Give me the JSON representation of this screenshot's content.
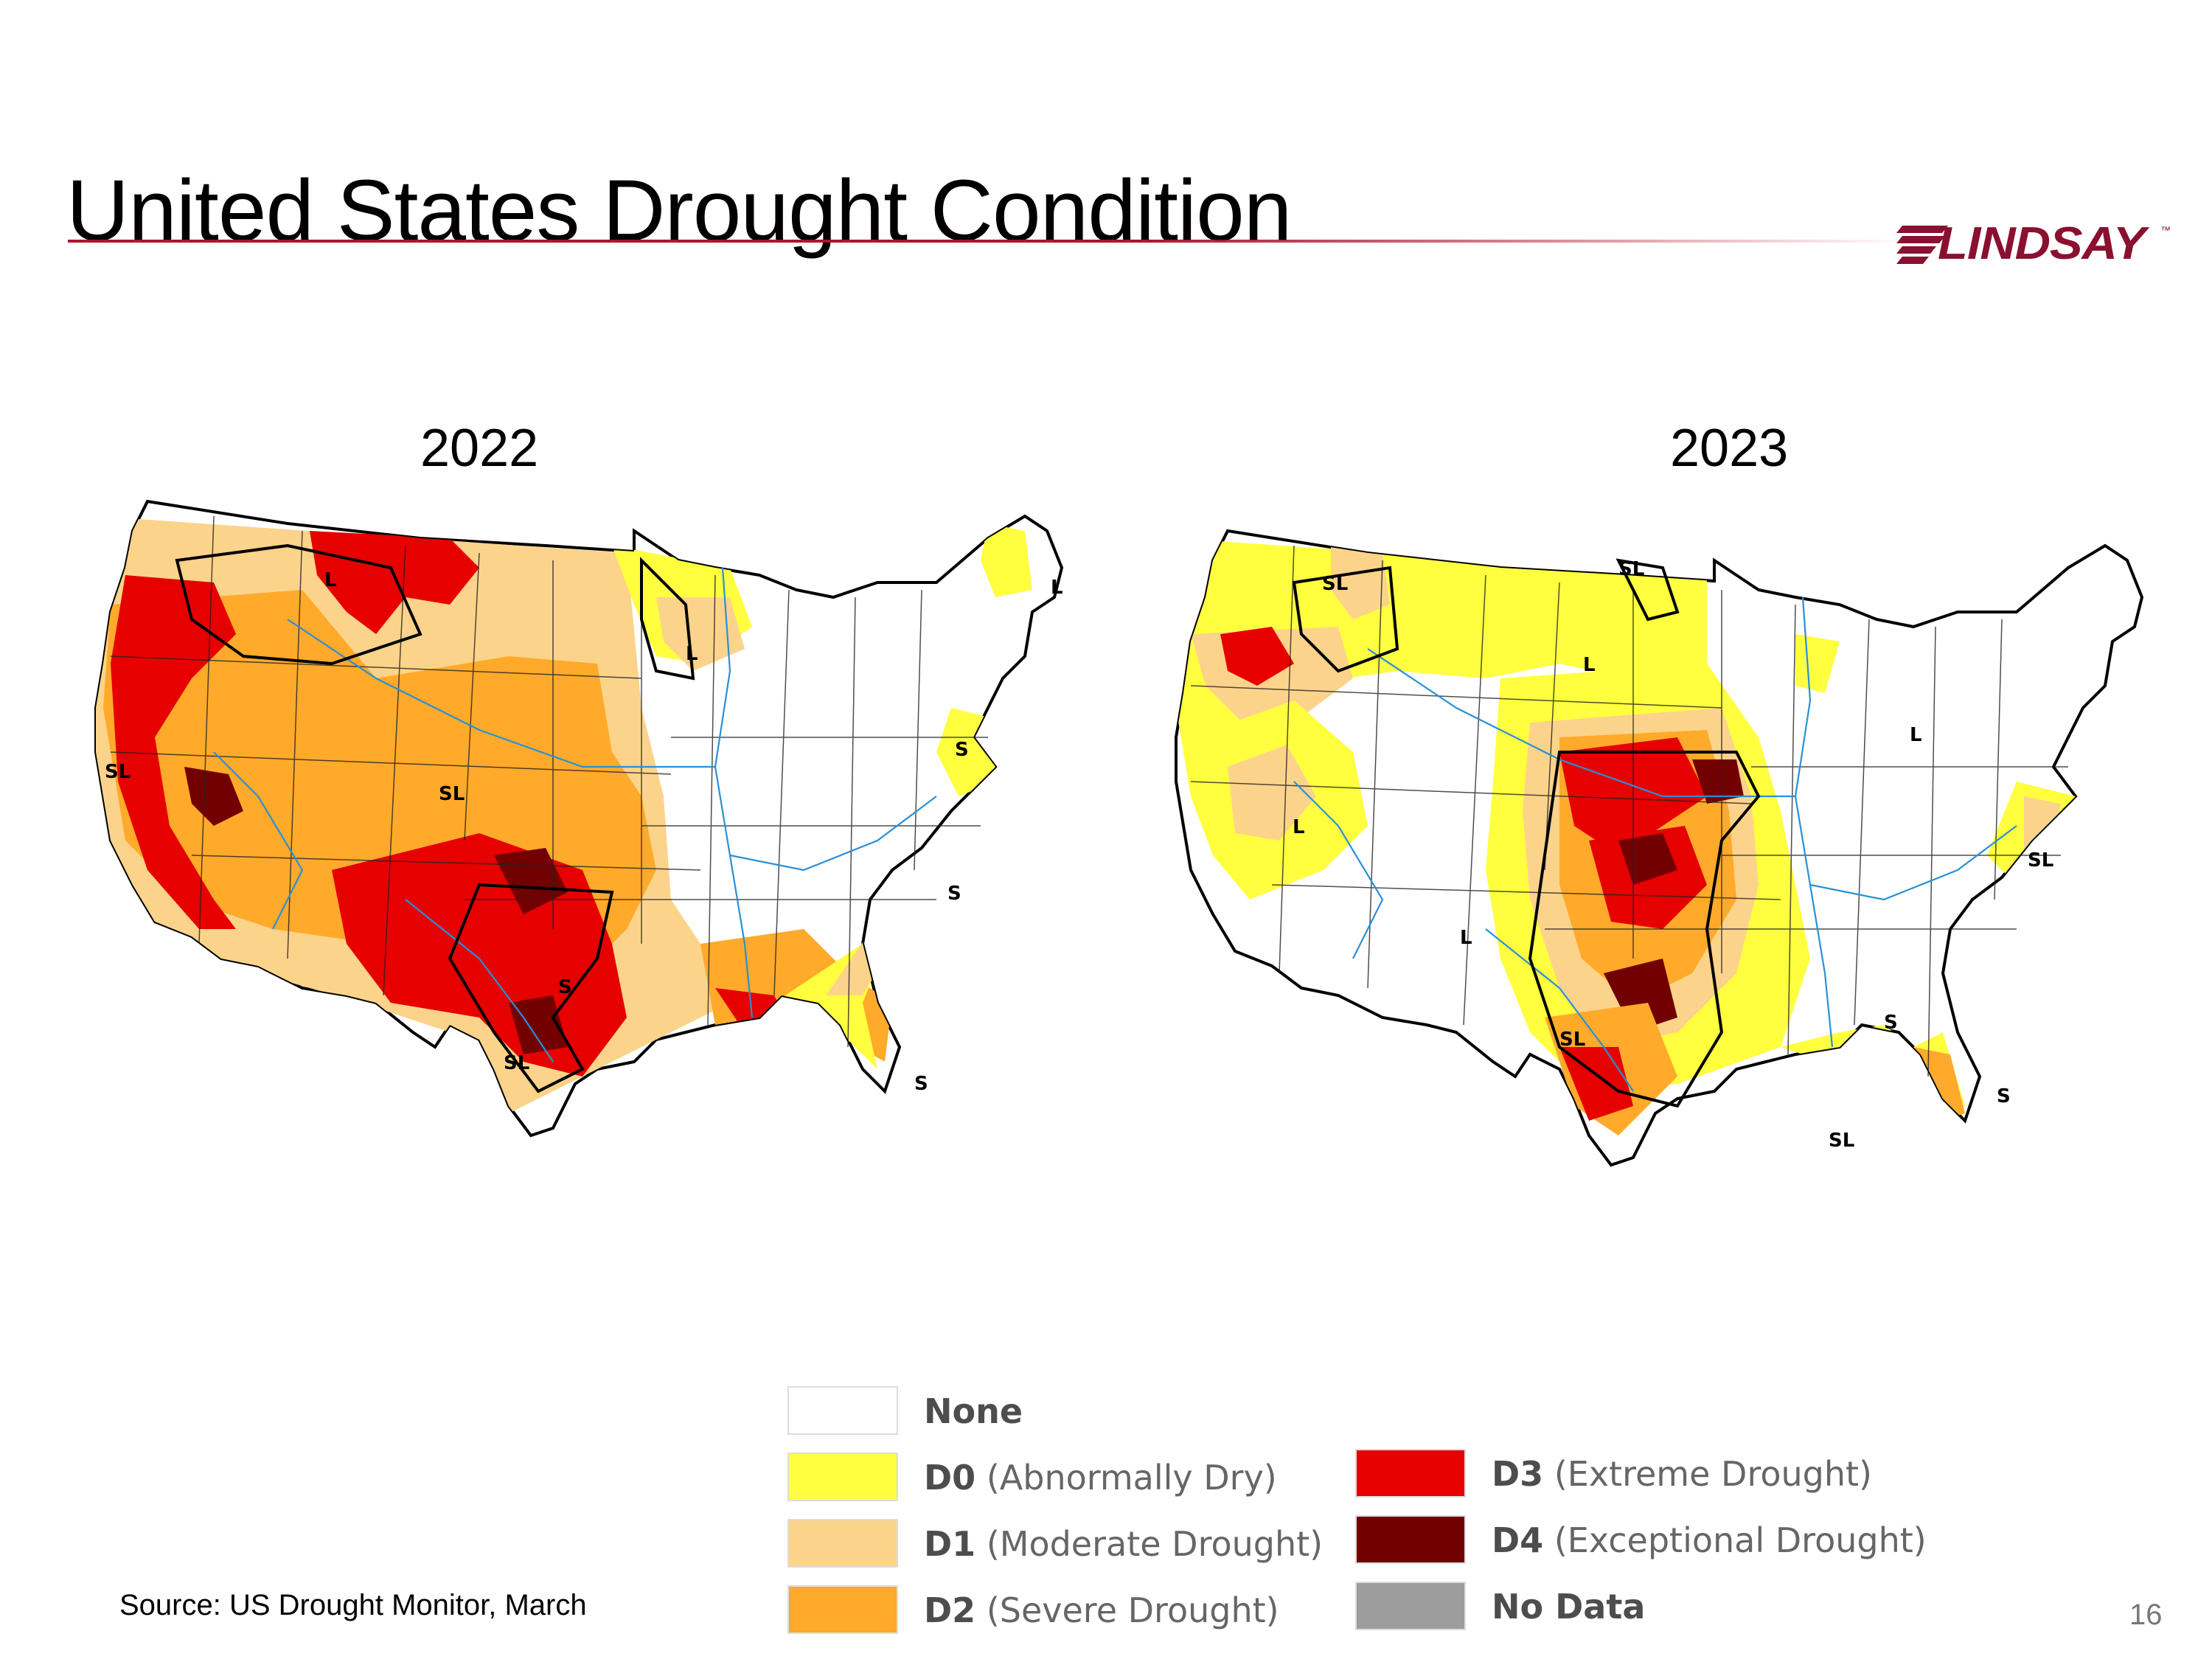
{
  "slide": {
    "title": "United States Drought Condition",
    "page_number": "16",
    "source": "Source: US Drought Monitor, March"
  },
  "brand": {
    "name": "LINDSAY",
    "trademark": "™",
    "color": "#8a1030"
  },
  "maps": [
    {
      "year": "2022",
      "impact_labels": [
        "L",
        "L",
        "L",
        "SL",
        "SL",
        "S",
        "S",
        "S",
        "SL",
        "S"
      ]
    },
    {
      "year": "2023",
      "impact_labels": [
        "SL",
        "SL",
        "L",
        "L",
        "L",
        "L",
        "SL",
        "SL",
        "S",
        "S",
        "SL"
      ]
    }
  ],
  "legend": {
    "items": [
      {
        "code": "",
        "desc": "None",
        "color": "#ffffff"
      },
      {
        "code": "D0",
        "desc": "(Abnormally Dry)",
        "color": "#ffff40"
      },
      {
        "code": "D1",
        "desc": "(Moderate Drought)",
        "color": "#fcd38a"
      },
      {
        "code": "D2",
        "desc": "(Severe Drought)",
        "color": "#ffaa2a"
      },
      {
        "code": "D3",
        "desc": "(Extreme Drought)",
        "color": "#e60000"
      },
      {
        "code": "D4",
        "desc": "(Exceptional Drought)",
        "color": "#730000"
      },
      {
        "code": "",
        "desc": "No Data",
        "color": "#9c9c9c"
      }
    ]
  }
}
